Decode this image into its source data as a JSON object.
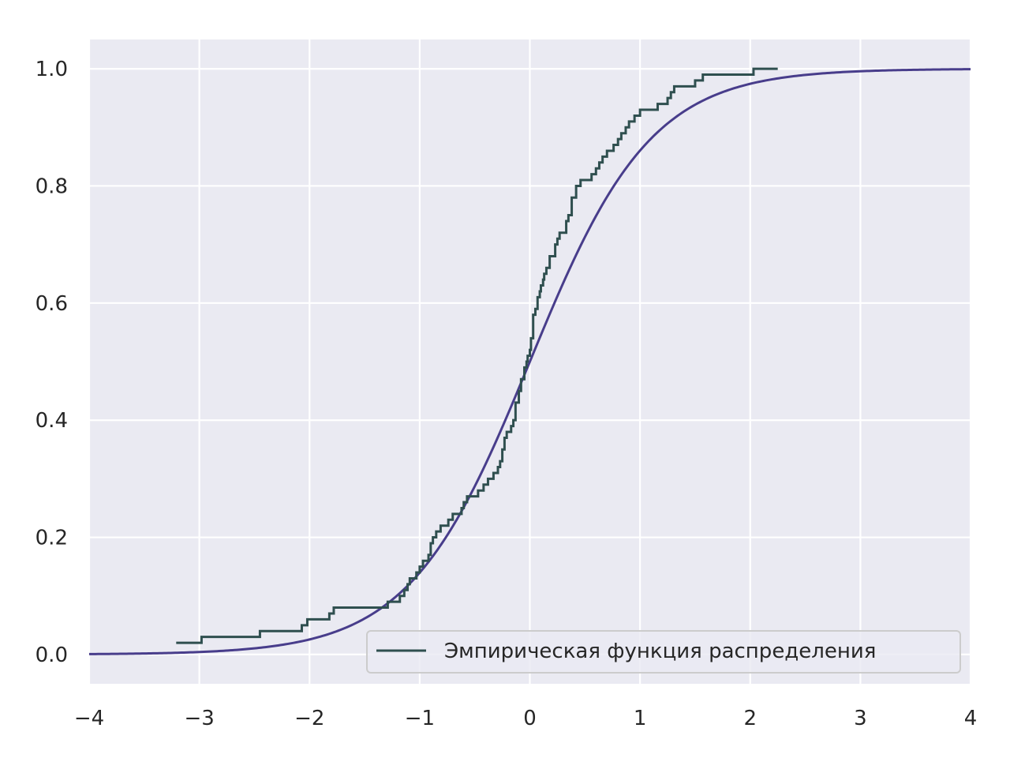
{
  "chart_data": {
    "type": "line",
    "title": "",
    "xlabel": "",
    "ylabel": "",
    "xlim": [
      -4,
      4
    ],
    "ylim": [
      -0.05,
      1.05
    ],
    "grid": true,
    "background_color": "#eaeaf2",
    "grid_color": "#ffffff",
    "x_ticks": [
      -4,
      -3,
      -2,
      -1,
      0,
      1,
      2,
      3,
      4
    ],
    "x_tick_labels": [
      "−4",
      "−3",
      "−2",
      "−1",
      "0",
      "1",
      "2",
      "3",
      "4"
    ],
    "y_ticks": [
      0.0,
      0.2,
      0.4,
      0.6,
      0.8,
      1.0
    ],
    "y_tick_labels": [
      "0.0",
      "0.2",
      "0.4",
      "0.6",
      "0.8",
      "1.0"
    ],
    "legend": {
      "placement": "lower-right",
      "entries": [
        {
          "label": "Эмпирическая функция распределения",
          "color": "#2f4f4f"
        }
      ]
    },
    "series": [
      {
        "name": "Эмпирическая функция распределения",
        "kind": "step",
        "color": "#2f4f4f",
        "x": [
          -3.21,
          -2.98,
          -2.45,
          -2.07,
          -2.02,
          -1.82,
          -1.78,
          -1.29,
          -1.18,
          -1.14,
          -1.11,
          -1.09,
          -1.03,
          -1.0,
          -0.97,
          -0.92,
          -0.9,
          -0.88,
          -0.85,
          -0.81,
          -0.74,
          -0.7,
          -0.62,
          -0.6,
          -0.57,
          -0.47,
          -0.42,
          -0.38,
          -0.33,
          -0.29,
          -0.27,
          -0.25,
          -0.23,
          -0.21,
          -0.17,
          -0.15,
          -0.13,
          -0.1,
          -0.08,
          -0.05,
          -0.03,
          -0.02,
          0.0,
          0.01,
          0.03,
          0.05,
          0.07,
          0.09,
          0.1,
          0.12,
          0.13,
          0.15,
          0.18,
          0.23,
          0.25,
          0.27,
          0.33,
          0.35,
          0.38,
          0.42,
          0.46,
          0.56,
          0.6,
          0.63,
          0.66,
          0.7,
          0.76,
          0.8,
          0.83,
          0.87,
          0.9,
          0.95,
          1.0,
          1.05,
          1.16,
          1.25,
          1.28,
          1.31,
          1.5,
          1.57,
          2.03
        ],
        "y": [
          0.02,
          0.03,
          0.04,
          0.05,
          0.06,
          0.07,
          0.08,
          0.09,
          0.1,
          0.11,
          0.12,
          0.13,
          0.14,
          0.15,
          0.16,
          0.17,
          0.19,
          0.2,
          0.21,
          0.22,
          0.23,
          0.24,
          0.25,
          0.26,
          0.27,
          0.28,
          0.29,
          0.3,
          0.31,
          0.32,
          0.33,
          0.35,
          0.37,
          0.38,
          0.39,
          0.4,
          0.43,
          0.45,
          0.47,
          0.49,
          0.5,
          0.51,
          0.52,
          0.54,
          0.58,
          0.59,
          0.61,
          0.62,
          0.63,
          0.64,
          0.65,
          0.66,
          0.68,
          0.7,
          0.71,
          0.72,
          0.74,
          0.75,
          0.78,
          0.8,
          0.81,
          0.82,
          0.83,
          0.84,
          0.85,
          0.86,
          0.87,
          0.88,
          0.89,
          0.9,
          0.91,
          0.92,
          0.93,
          0.93,
          0.94,
          0.95,
          0.96,
          0.97,
          0.98,
          0.99,
          1.0
        ],
        "x_end": 2.25
      },
      {
        "kind": "cdf",
        "distribution": "logistic",
        "loc": 0,
        "scale": 0.55,
        "color": "#483d8b"
      }
    ]
  }
}
